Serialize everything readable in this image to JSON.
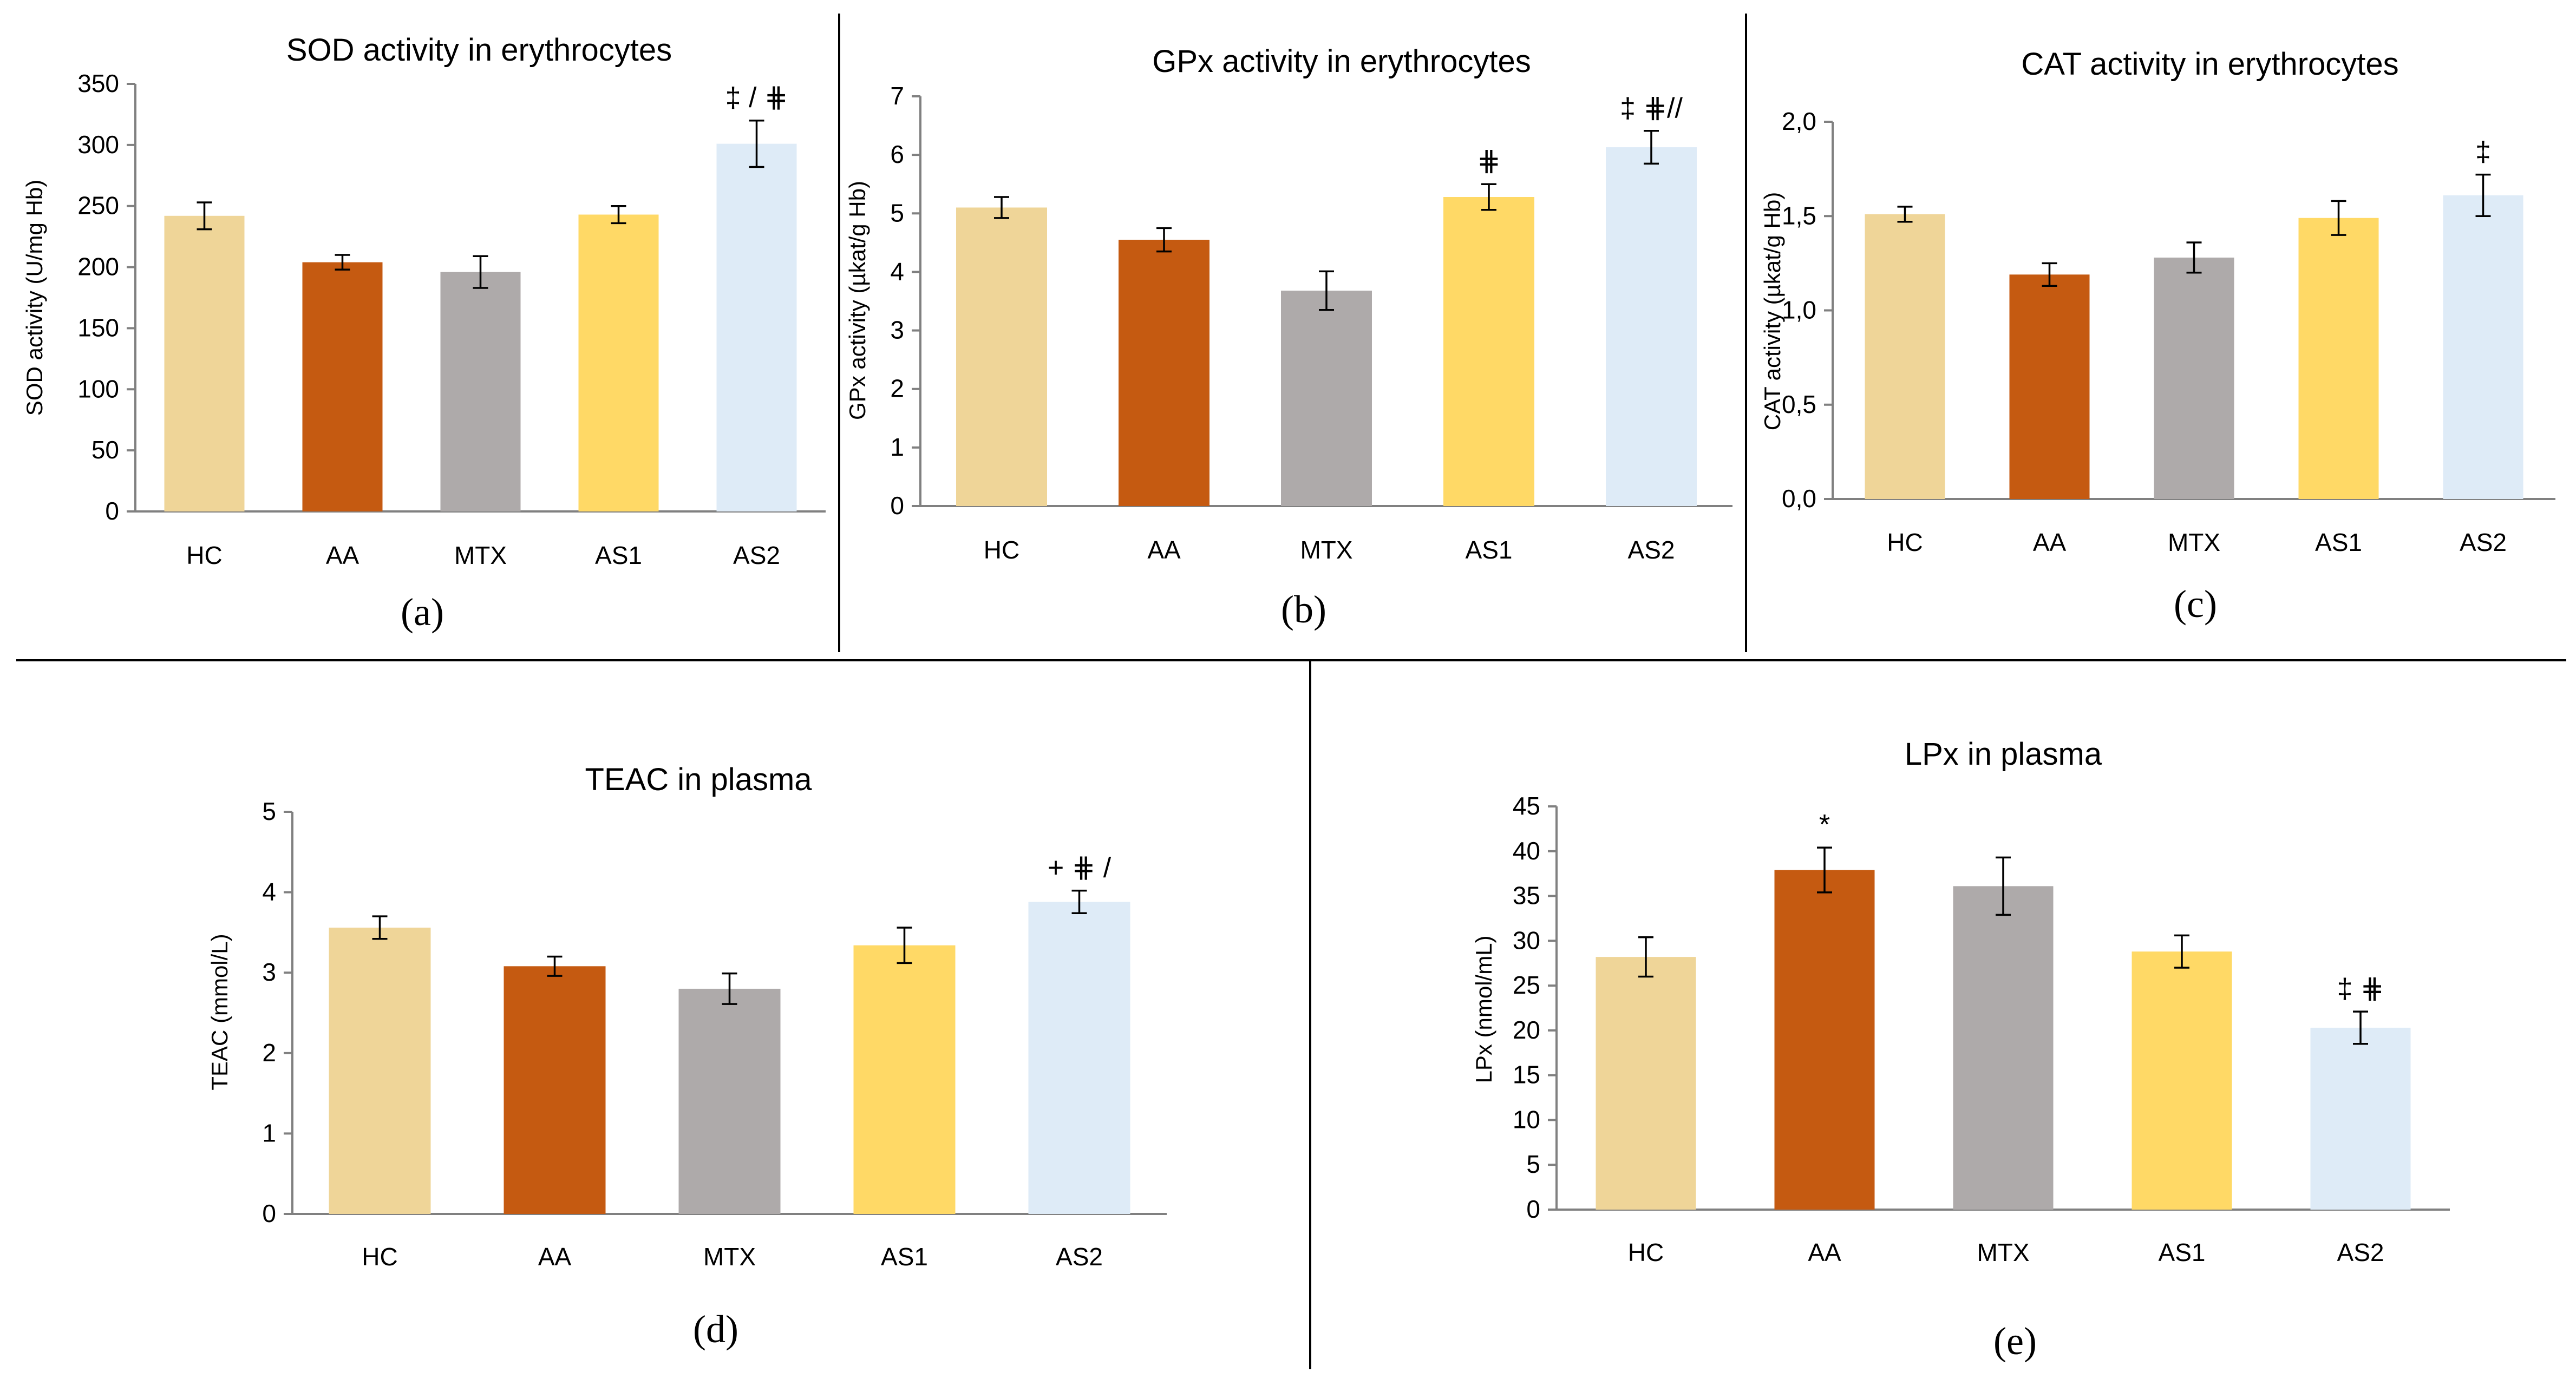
{
  "figure": {
    "colors": {
      "HC": "#efd598",
      "AA": "#c55a11",
      "MTX": "#aeaaaa",
      "AS1": "#ffd966",
      "AS2": "#deebf7",
      "axis": "#808080",
      "text": "#000000",
      "divider": "#000000"
    }
  },
  "chart_data": [
    {
      "type": "bar",
      "panel": "(a)",
      "title": "SOD activity in erythrocytes",
      "ylabel": "SOD activity (U/mg Hb)",
      "xlabel": "",
      "categories": [
        "HC",
        "AA",
        "MTX",
        "AS1",
        "AS2"
      ],
      "values": [
        242,
        204,
        196,
        243,
        301
      ],
      "errors": [
        11,
        6,
        13,
        7,
        19
      ],
      "ylim": [
        0,
        350
      ],
      "yticks": [
        "0",
        "50",
        "100",
        "150",
        "200",
        "250",
        "300",
        "350"
      ],
      "annotations": [
        "",
        "",
        "",
        "",
        "‡ / ⋕"
      ]
    },
    {
      "type": "bar",
      "panel": "(b)",
      "title": "GPx activity in erythrocytes",
      "ylabel": "GPx activity (µkat/g Hb)",
      "xlabel": "",
      "categories": [
        "HC",
        "AA",
        "MTX",
        "AS1",
        "AS2"
      ],
      "values": [
        5.1,
        4.55,
        3.68,
        5.28,
        6.13
      ],
      "errors": [
        0.18,
        0.2,
        0.33,
        0.22,
        0.28
      ],
      "ylim": [
        0,
        7
      ],
      "yticks": [
        "0",
        "1",
        "2",
        "3",
        "4",
        "5",
        "6",
        "7"
      ],
      "annotations": [
        "",
        "",
        "",
        "⋕",
        "‡ ⋕//"
      ]
    },
    {
      "type": "bar",
      "panel": "(c)",
      "title": "CAT activity in erythrocytes",
      "ylabel": "CAT activity (µkat/g Hb)",
      "xlabel": "",
      "categories": [
        "HC",
        "AA",
        "MTX",
        "AS1",
        "AS2"
      ],
      "values": [
        1.51,
        1.19,
        1.28,
        1.49,
        1.61
      ],
      "errors": [
        0.04,
        0.06,
        0.08,
        0.09,
        0.11
      ],
      "ylim": [
        0,
        2
      ],
      "yticks": [
        "0,0",
        "0,5",
        "1,0",
        "1,5",
        "2,0"
      ],
      "annotations": [
        "",
        "",
        "",
        "",
        "‡"
      ]
    },
    {
      "type": "bar",
      "panel": "(d)",
      "title": "TEAC in plasma",
      "ylabel": "TEAC (mmol/L)",
      "xlabel": "",
      "categories": [
        "HC",
        "AA",
        "MTX",
        "AS1",
        "AS2"
      ],
      "values": [
        3.56,
        3.08,
        2.8,
        3.34,
        3.88
      ],
      "errors": [
        0.14,
        0.12,
        0.19,
        0.22,
        0.14
      ],
      "ylim": [
        0,
        5
      ],
      "yticks": [
        "0",
        "1",
        "2",
        "3",
        "4",
        "5"
      ],
      "annotations": [
        "",
        "",
        "",
        "",
        "+ ⋕ /"
      ]
    },
    {
      "type": "bar",
      "panel": "(e)",
      "title": "LPx in plasma",
      "ylabel": "LPx (nmol/mL)",
      "xlabel": "",
      "categories": [
        "HC",
        "AA",
        "MTX",
        "AS1",
        "AS2"
      ],
      "values": [
        28.2,
        37.9,
        36.1,
        28.8,
        20.3
      ],
      "errors": [
        2.2,
        2.5,
        3.2,
        1.8,
        1.8
      ],
      "ylim": [
        0,
        45
      ],
      "yticks": [
        "0",
        "5",
        "10",
        "15",
        "20",
        "25",
        "30",
        "35",
        "40",
        "45"
      ],
      "annotations": [
        "",
        "*",
        "",
        "",
        "‡ ⋕"
      ]
    }
  ]
}
